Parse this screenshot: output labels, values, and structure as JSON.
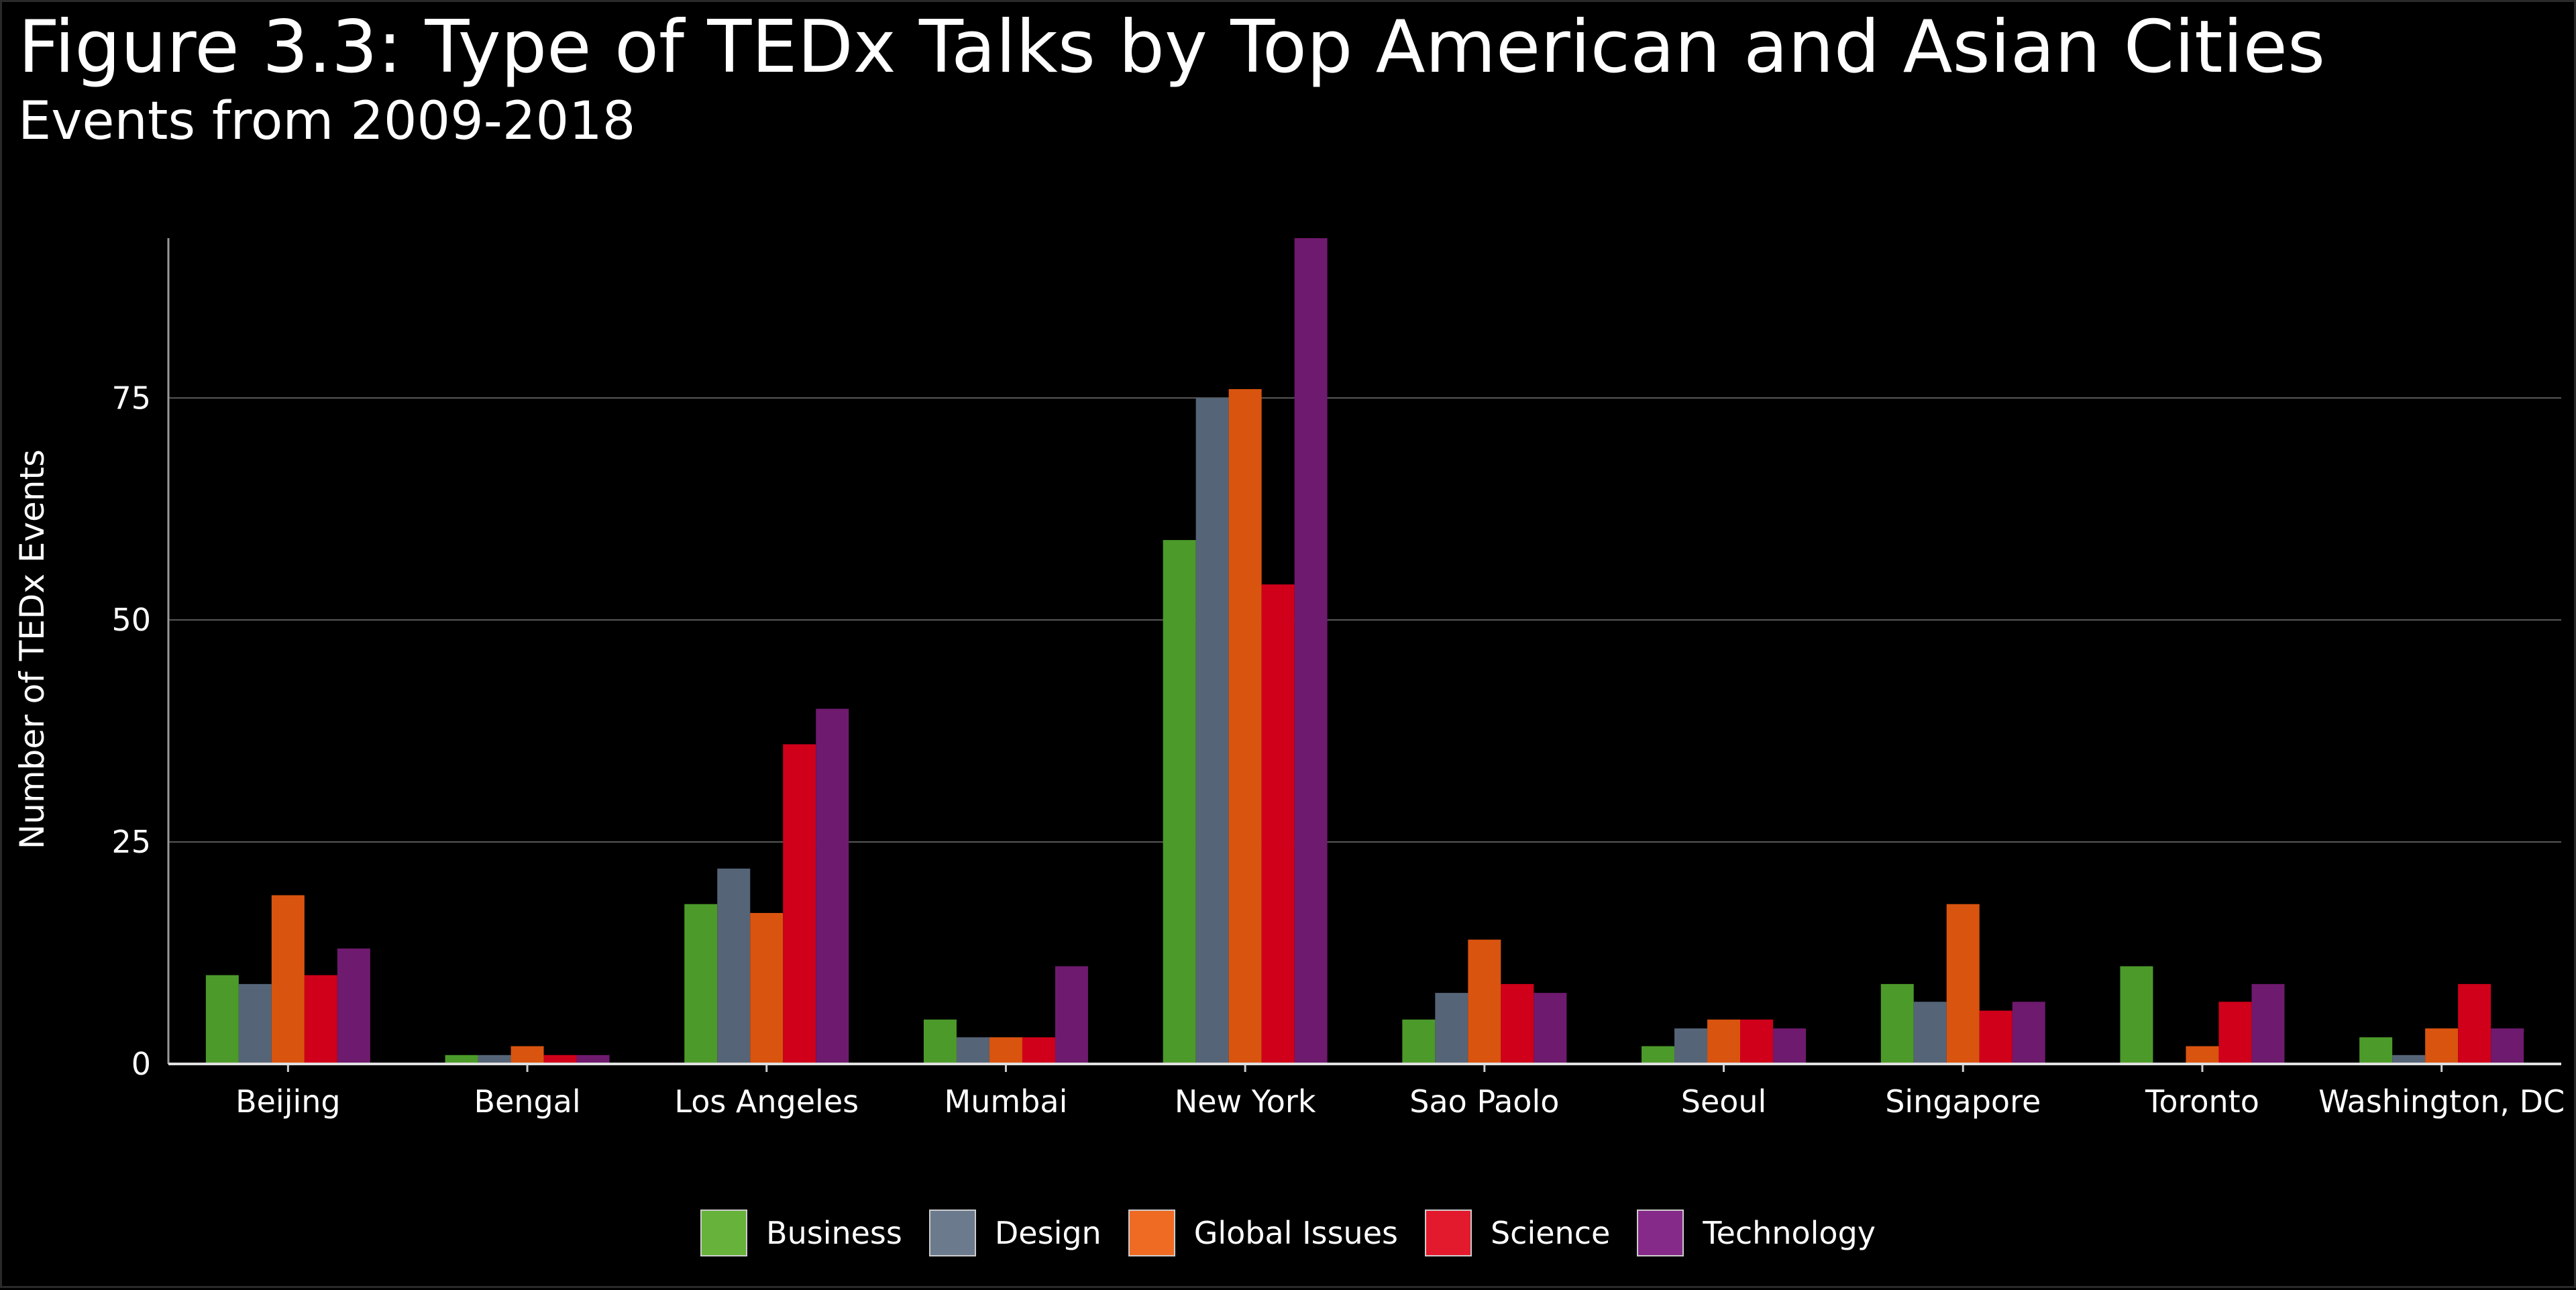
{
  "chart_data": {
    "type": "bar",
    "title": "Figure 3.3: Type of TEDx Talks by Top American and Asian Cities",
    "subtitle": "Events from 2009-2018",
    "xlabel": "",
    "ylabel": "Number of TEDx Events",
    "ylim": [
      0,
      93
    ],
    "yticks": [
      0,
      25,
      50,
      75
    ],
    "grid": true,
    "legend_position": "bottom",
    "categories": [
      "Beijing",
      "Bengal",
      "Los Angeles",
      "Mumbai",
      "New York",
      "Sao Paolo",
      "Seoul",
      "Singapore",
      "Toronto",
      "Washington, DC"
    ],
    "series": [
      {
        "name": "Business",
        "color": "#4c9a2a",
        "legend_color": "#66b23a",
        "values": [
          10,
          1,
          18,
          5,
          59,
          5,
          2,
          9,
          11,
          3
        ]
      },
      {
        "name": "Design",
        "color": "#566478",
        "legend_color": "#6c7a8e",
        "values": [
          9,
          1,
          22,
          3,
          75,
          8,
          4,
          7,
          0,
          1
        ]
      },
      {
        "name": "Global Issues",
        "color": "#d9540f",
        "legend_color": "#ef6a23",
        "values": [
          19,
          2,
          17,
          3,
          76,
          14,
          5,
          18,
          2,
          4
        ]
      },
      {
        "name": "Science",
        "color": "#d0001a",
        "legend_color": "#e31a2e",
        "values": [
          10,
          1,
          36,
          3,
          54,
          9,
          5,
          6,
          7,
          9
        ]
      },
      {
        "name": "Technology",
        "color": "#6e1a6e",
        "legend_color": "#852a88",
        "values": [
          13,
          1,
          40,
          11,
          93,
          8,
          4,
          7,
          9,
          4
        ]
      }
    ]
  }
}
